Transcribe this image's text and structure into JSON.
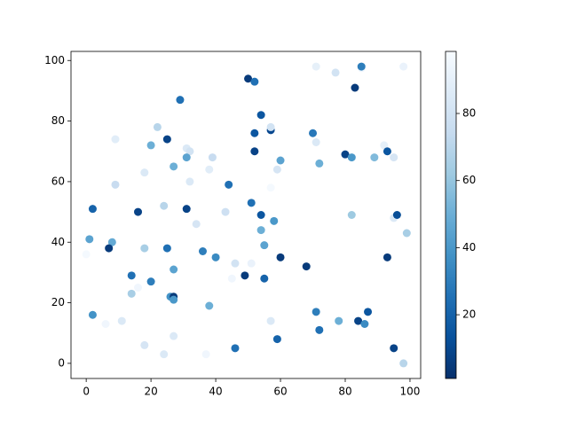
{
  "chart_data": {
    "type": "scatter",
    "x": [
      50,
      52,
      29,
      83,
      71,
      77,
      85,
      85,
      98,
      54,
      25,
      22,
      9,
      20,
      52,
      57,
      57,
      70,
      71,
      31,
      32,
      31,
      27,
      39,
      38,
      18,
      52,
      59,
      60,
      72,
      80,
      82,
      89,
      92,
      93,
      95,
      9,
      32,
      44,
      57,
      2,
      16,
      24,
      31,
      34,
      43,
      51,
      54,
      54,
      58,
      82,
      95,
      96,
      99,
      1,
      8,
      0,
      7,
      18,
      25,
      36,
      40,
      55,
      60,
      68,
      93,
      14,
      20,
      14,
      16,
      27,
      26,
      27,
      27,
      38,
      45,
      46,
      51,
      49,
      55,
      2,
      6,
      11,
      71,
      72,
      78,
      84,
      86,
      87,
      18,
      24,
      27,
      37,
      46,
      57,
      59,
      95,
      98
    ],
    "values": [
      94,
      93,
      87,
      91,
      98,
      96,
      97.5,
      98,
      98,
      82,
      74,
      78,
      74,
      72,
      76,
      77,
      78,
      76,
      73,
      71,
      70,
      68,
      65,
      68,
      64,
      63,
      70,
      64,
      67,
      66,
      69,
      68,
      68,
      72,
      70,
      68,
      59,
      60,
      59,
      58,
      51,
      50,
      52,
      51,
      46,
      50,
      53,
      49,
      44,
      47,
      49,
      48,
      49,
      43,
      41,
      40,
      36,
      38,
      38,
      38,
      37,
      35,
      39,
      35,
      32,
      35,
      29,
      27,
      23,
      25,
      31,
      22,
      22,
      21,
      19,
      28,
      33,
      33,
      29,
      28,
      16,
      13,
      14,
      17,
      11,
      14,
      14,
      13,
      17,
      6,
      3,
      9,
      3,
      5,
      14,
      8,
      5,
      0
    ],
    "color_values": [
      5,
      25,
      25,
      5,
      90,
      80,
      95,
      30,
      92,
      15,
      8,
      70,
      88,
      50,
      15,
      10,
      80,
      28,
      85,
      85,
      80,
      45,
      50,
      75,
      88,
      85,
      8,
      82,
      45,
      50,
      8,
      40,
      55,
      90,
      15,
      82,
      75,
      85,
      25,
      97,
      20,
      8,
      70,
      8,
      82,
      78,
      25,
      15,
      50,
      40,
      62,
      85,
      12,
      65,
      45,
      48,
      97,
      5,
      65,
      25,
      30,
      35,
      45,
      5,
      5,
      5,
      25,
      30,
      65,
      95,
      45,
      38,
      5,
      40,
      50,
      95,
      80,
      92,
      5,
      20,
      38,
      95,
      85,
      30,
      25,
      50,
      8,
      35,
      15,
      82,
      85,
      85,
      95,
      25,
      85,
      20,
      8,
      70
    ],
    "colormap": [
      "#08306b",
      "#08519c",
      "#2171b5",
      "#4292c6",
      "#6baed6",
      "#9ecae1",
      "#c6dbef",
      "#deebf7",
      "#f7fbff"
    ],
    "xlim": [
      -4.7,
      103.3
    ],
    "ylim": [
      -5,
      103
    ],
    "clim": [
      1,
      98.5
    ],
    "xticks": [
      0,
      20,
      40,
      60,
      80,
      100
    ],
    "yticks": [
      0,
      20,
      40,
      60,
      80,
      100
    ],
    "cticks": [
      20,
      40,
      60,
      80
    ]
  }
}
